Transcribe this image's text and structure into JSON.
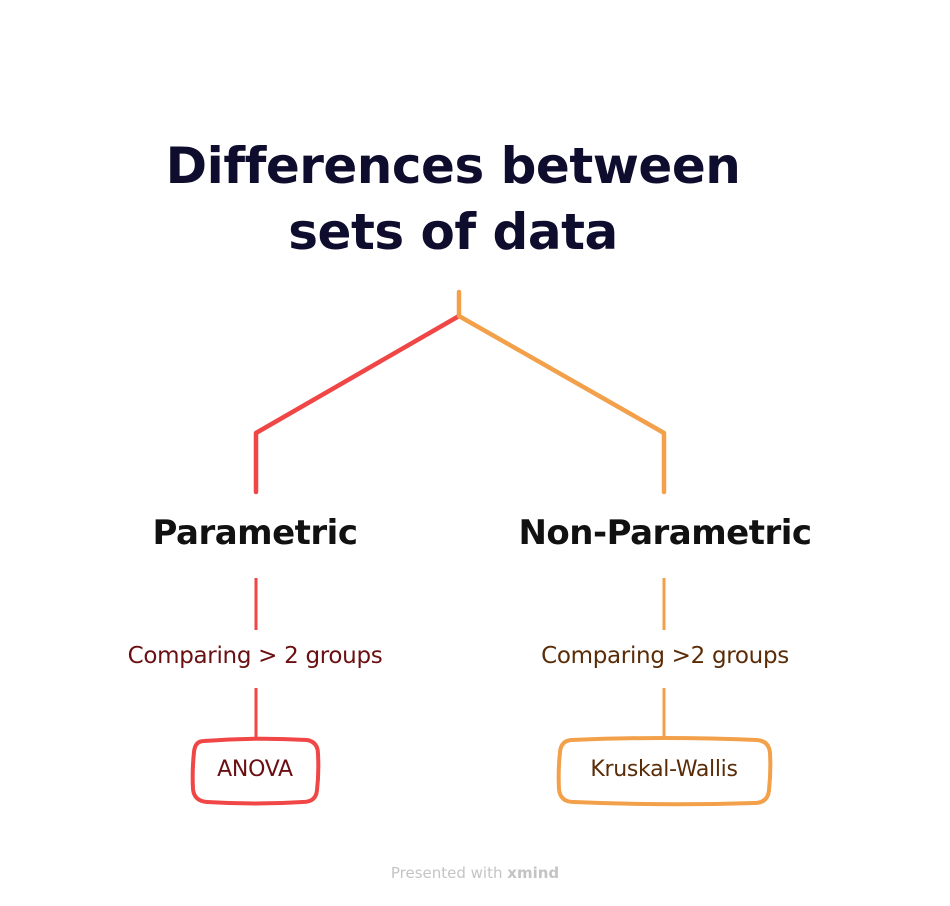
{
  "title": {
    "line1": "Differences between",
    "line2": "sets of data"
  },
  "branches": [
    {
      "label": "Parametric",
      "criterion": "Comparing > 2 groups",
      "test": "ANOVA",
      "color": "#f04646"
    },
    {
      "label": "Non-Parametric",
      "criterion": "Comparing >2 groups",
      "test": "Kruskal-Wallis",
      "color": "#f3a04b"
    }
  ],
  "footer": {
    "prefix": "Presented with",
    "brand": "xmind"
  },
  "colors": {
    "title": "#0e0d2e",
    "left_text": "#6a0f12",
    "right_text": "#5a2c07",
    "footer": "#c4c4c4"
  }
}
